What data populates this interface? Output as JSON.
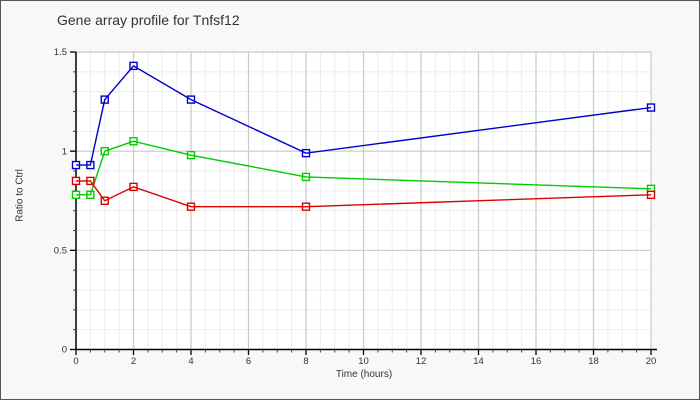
{
  "chart_data": {
    "type": "line",
    "title": "Gene array profile for Tnfsf12",
    "xlabel": "Time (hours)",
    "ylabel": "Ratio to Ctrl",
    "x": [
      0,
      0.5,
      1,
      2,
      4,
      8,
      20
    ],
    "series": [
      {
        "name": "blue",
        "color": "#0000cc",
        "values": [
          0.93,
          0.93,
          1.26,
          1.43,
          1.26,
          0.99,
          1.22
        ]
      },
      {
        "name": "green",
        "color": "#00cc00",
        "values": [
          0.78,
          0.78,
          1.0,
          1.05,
          0.98,
          0.87,
          0.81
        ]
      },
      {
        "name": "red",
        "color": "#dd0000",
        "values": [
          0.85,
          0.85,
          0.75,
          0.82,
          0.72,
          0.72,
          0.78
        ]
      }
    ],
    "xlim": [
      0,
      20
    ],
    "ylim": [
      0,
      1.5
    ],
    "xticks": {
      "values": [
        0,
        2,
        4,
        6,
        8,
        10,
        12,
        14,
        16,
        18,
        20
      ],
      "labels": [
        "0",
        "2",
        "4",
        "6",
        "8",
        "10",
        "12",
        "14",
        "16",
        "18",
        "20"
      ]
    },
    "yticks": {
      "values": [
        0,
        0.5,
        1,
        1.5
      ],
      "labels": [
        "0",
        "0.5",
        "1",
        "1.5"
      ]
    },
    "minor_x_step": 0.5,
    "minor_y_step": 0.1,
    "grid": true,
    "legend": false,
    "marker": "open-square",
    "colors": {
      "page_bg": "#f8f8f8",
      "plot_bg": "#ffffff",
      "grid_major": "#c9c9c9",
      "grid_minor": "#ededed",
      "axis": "#000000",
      "tick_text": "#333333",
      "frame": "#555555"
    }
  }
}
